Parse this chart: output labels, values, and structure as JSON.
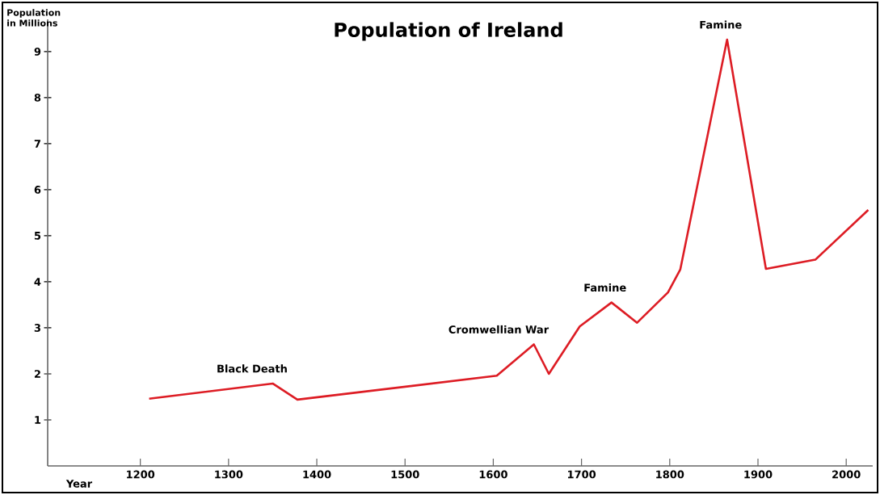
{
  "chart_data": {
    "type": "line",
    "title": "Population of Ireland",
    "xlabel": "Year",
    "ylabel": "Population in Millions",
    "x": [
      1210,
      1350,
      1378,
      1604,
      1646,
      1663,
      1698,
      1734,
      1763,
      1798,
      1812,
      1865,
      1909,
      1965,
      2025
    ],
    "series": [
      {
        "color": "#dd1c24",
        "values": [
          1.46,
          1.79,
          1.44,
          1.96,
          2.64,
          2.0,
          3.03,
          3.55,
          3.11,
          3.77,
          4.27,
          9.26,
          4.28,
          4.48,
          5.56
        ]
      }
    ],
    "xlim": [
      1095,
      2030
    ],
    "ylim": [
      0,
      9.7
    ],
    "xticks": [
      1200,
      1300,
      1400,
      1500,
      1600,
      1700,
      1800,
      1900,
      2000
    ],
    "yticks": [
      1,
      2,
      3,
      4,
      5,
      6,
      7,
      8,
      9
    ],
    "grid": false,
    "marker": "none",
    "line_style": "solid",
    "annotations": [
      {
        "text": "Black Death",
        "x": 1350,
        "y": 1.79
      },
      {
        "text": "Cromwellian War",
        "x": 1646,
        "y": 2.64
      },
      {
        "text": "Famine",
        "x": 1734,
        "y": 3.55
      },
      {
        "text": "Famine",
        "x": 1865,
        "y": 9.26
      }
    ]
  }
}
